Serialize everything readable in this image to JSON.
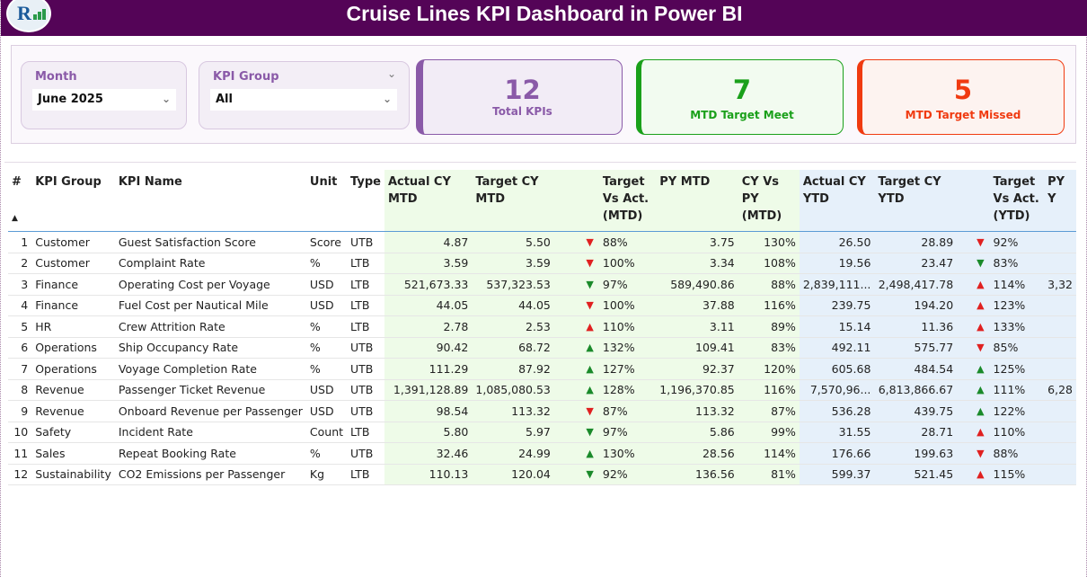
{
  "header": {
    "title": "Cruise Lines KPI Dashboard  in Power BI",
    "logo_text": "R"
  },
  "filters": {
    "month": {
      "label": "Month",
      "value": "June 2025"
    },
    "kpi_group": {
      "label": "KPI Group",
      "value": "All"
    }
  },
  "cards": [
    {
      "value": "12",
      "label": "Total KPIs",
      "color": "#8a5aa8"
    },
    {
      "value": "7",
      "label": "MTD Target Meet",
      "color": "#1aa01a"
    },
    {
      "value": "5",
      "label": "MTD Target Missed",
      "color": "#f03a10"
    }
  ],
  "table": {
    "headers": [
      "#",
      "KPI Group",
      "KPI Name",
      "Unit",
      "Type",
      "Actual CY MTD",
      "Target CY MTD",
      "",
      "Target Vs Act. (MTD)",
      "PY MTD",
      "CY Vs PY (MTD)",
      "Actual CY YTD",
      "Target CY YTD",
      "",
      "Target Vs Act. (YTD)",
      "PY Y"
    ],
    "rows": [
      [
        "1",
        "Customer",
        "Guest Satisfaction Score",
        "Score",
        "UTB",
        "4.87",
        "5.50",
        "down-red",
        "88%",
        "3.75",
        "130%",
        "26.50",
        "28.89",
        "down-red",
        "92%",
        ""
      ],
      [
        "2",
        "Customer",
        "Complaint Rate",
        "%",
        "LTB",
        "3.59",
        "3.59",
        "down-red",
        "100%",
        "3.34",
        "108%",
        "19.56",
        "23.47",
        "down-green",
        "83%",
        ""
      ],
      [
        "3",
        "Finance",
        "Operating Cost per Voyage",
        "USD",
        "LTB",
        "521,673.33",
        "537,323.53",
        "down-green",
        "97%",
        "589,490.86",
        "88%",
        "2,839,111...",
        "2,498,417.78",
        "up-red",
        "114%",
        "3,32"
      ],
      [
        "4",
        "Finance",
        "Fuel Cost per Nautical Mile",
        "USD",
        "LTB",
        "44.05",
        "44.05",
        "down-red",
        "100%",
        "37.88",
        "116%",
        "239.75",
        "194.20",
        "up-red",
        "123%",
        ""
      ],
      [
        "5",
        "HR",
        "Crew Attrition Rate",
        "%",
        "LTB",
        "2.78",
        "2.53",
        "up-red",
        "110%",
        "3.11",
        "89%",
        "15.14",
        "11.36",
        "up-red",
        "133%",
        ""
      ],
      [
        "6",
        "Operations",
        "Ship Occupancy Rate",
        "%",
        "UTB",
        "90.42",
        "68.72",
        "up-green",
        "132%",
        "109.41",
        "83%",
        "492.11",
        "575.77",
        "down-red",
        "85%",
        ""
      ],
      [
        "7",
        "Operations",
        "Voyage Completion Rate",
        "%",
        "UTB",
        "111.29",
        "87.92",
        "up-green",
        "127%",
        "92.37",
        "120%",
        "605.68",
        "484.54",
        "up-green",
        "125%",
        ""
      ],
      [
        "8",
        "Revenue",
        "Passenger Ticket Revenue",
        "USD",
        "UTB",
        "1,391,128.89",
        "1,085,080.53",
        "up-green",
        "128%",
        "1,196,370.85",
        "116%",
        "7,570,96...",
        "6,813,866.67",
        "up-green",
        "111%",
        "6,28"
      ],
      [
        "9",
        "Revenue",
        "Onboard Revenue per Passenger",
        "USD",
        "UTB",
        "98.54",
        "113.32",
        "down-red",
        "87%",
        "113.32",
        "87%",
        "536.28",
        "439.75",
        "up-green",
        "122%",
        ""
      ],
      [
        "10",
        "Safety",
        "Incident Rate",
        "Count",
        "LTB",
        "5.80",
        "5.97",
        "down-green",
        "97%",
        "5.86",
        "99%",
        "31.55",
        "28.71",
        "up-red",
        "110%",
        ""
      ],
      [
        "11",
        "Sales",
        "Repeat Booking Rate",
        "%",
        "UTB",
        "32.46",
        "24.99",
        "up-green",
        "130%",
        "28.56",
        "114%",
        "176.66",
        "199.63",
        "down-red",
        "88%",
        ""
      ],
      [
        "12",
        "Sustainability",
        "CO2 Emissions per Passenger",
        "Kg",
        "LTB",
        "110.13",
        "120.04",
        "down-green",
        "92%",
        "136.56",
        "81%",
        "599.37",
        "521.45",
        "up-red",
        "115%",
        ""
      ]
    ]
  }
}
